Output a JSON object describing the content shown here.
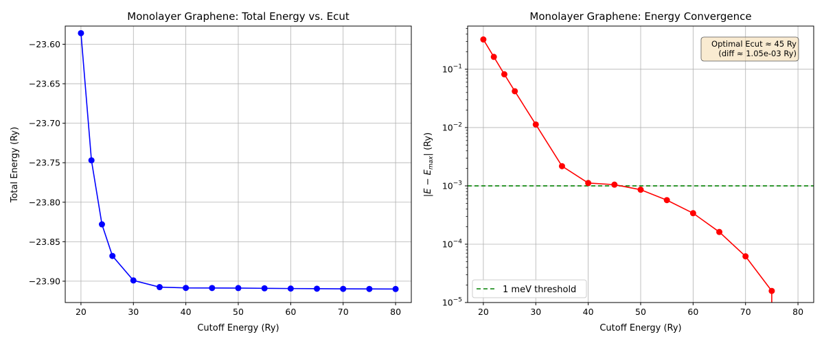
{
  "chart_data": [
    {
      "type": "line",
      "title": "Monolayer Graphene: Total Energy vs. Ecut",
      "xlabel": "Cutoff Energy (Ry)",
      "ylabel": "Total Energy (Ry)",
      "xlim": [
        17,
        83
      ],
      "ylim": [
        -23.927,
        -23.577
      ],
      "xticks": [
        20,
        30,
        40,
        50,
        60,
        70,
        80
      ],
      "yticks": [
        -23.6,
        -23.65,
        -23.7,
        -23.75,
        -23.8,
        -23.85,
        -23.9
      ],
      "ytick_labels": [
        "−23.60",
        "−23.65",
        "−23.70",
        "−23.75",
        "−23.80",
        "−23.85",
        "−23.90"
      ],
      "grid": true,
      "color": "#0000ff",
      "marker": "circle",
      "x": [
        20,
        22,
        24,
        26,
        30,
        35,
        40,
        45,
        50,
        55,
        60,
        65,
        70,
        75,
        80
      ],
      "y": [
        -23.586,
        -23.747,
        -23.828,
        -23.868,
        -23.899,
        -23.9075,
        -23.9085,
        -23.9086,
        -23.9087,
        -23.909,
        -23.9093,
        -23.9095,
        -23.9097,
        -23.9098,
        -23.9099
      ]
    },
    {
      "type": "line",
      "title": "Monolayer Graphene: Energy Convergence",
      "xlabel": "Cutoff Energy (Ry)",
      "ylabel": "|E − E",
      "ylabel_sub": "max",
      "ylabel_tail": "| (Ry)",
      "xlim": [
        17,
        83
      ],
      "ylim": [
        1e-05,
        0.55
      ],
      "yscale": "log",
      "xticks": [
        20,
        30,
        40,
        50,
        60,
        70,
        80
      ],
      "ytick_exponents": [
        -5,
        -4,
        -3,
        -2,
        -1
      ],
      "ytick_base": "10",
      "grid": true,
      "color": "#ff0000",
      "marker": "circle",
      "x": [
        20,
        22,
        24,
        26,
        30,
        35,
        40,
        45,
        50,
        55,
        60,
        65,
        70,
        75
      ],
      "y": [
        0.324,
        0.163,
        0.082,
        0.042,
        0.0113,
        0.00218,
        0.00112,
        0.00105,
        0.00086,
        0.00057,
        0.00034,
        0.000162,
        6.2e-05,
        1.58e-05
      ],
      "trailing_point": {
        "x": 80,
        "y": 0
      },
      "threshold": {
        "y": 0.001,
        "color": "#008000",
        "style": "dashed"
      },
      "legend": {
        "label": "1 meV threshold",
        "position": "lower-left"
      },
      "annotation": {
        "lines": [
          "Optimal Ecut ≈ 45 Ry",
          "(diff ≈ 1.05e-03 Ry)"
        ],
        "position": "top-right",
        "background": "#f5deb3"
      }
    }
  ]
}
